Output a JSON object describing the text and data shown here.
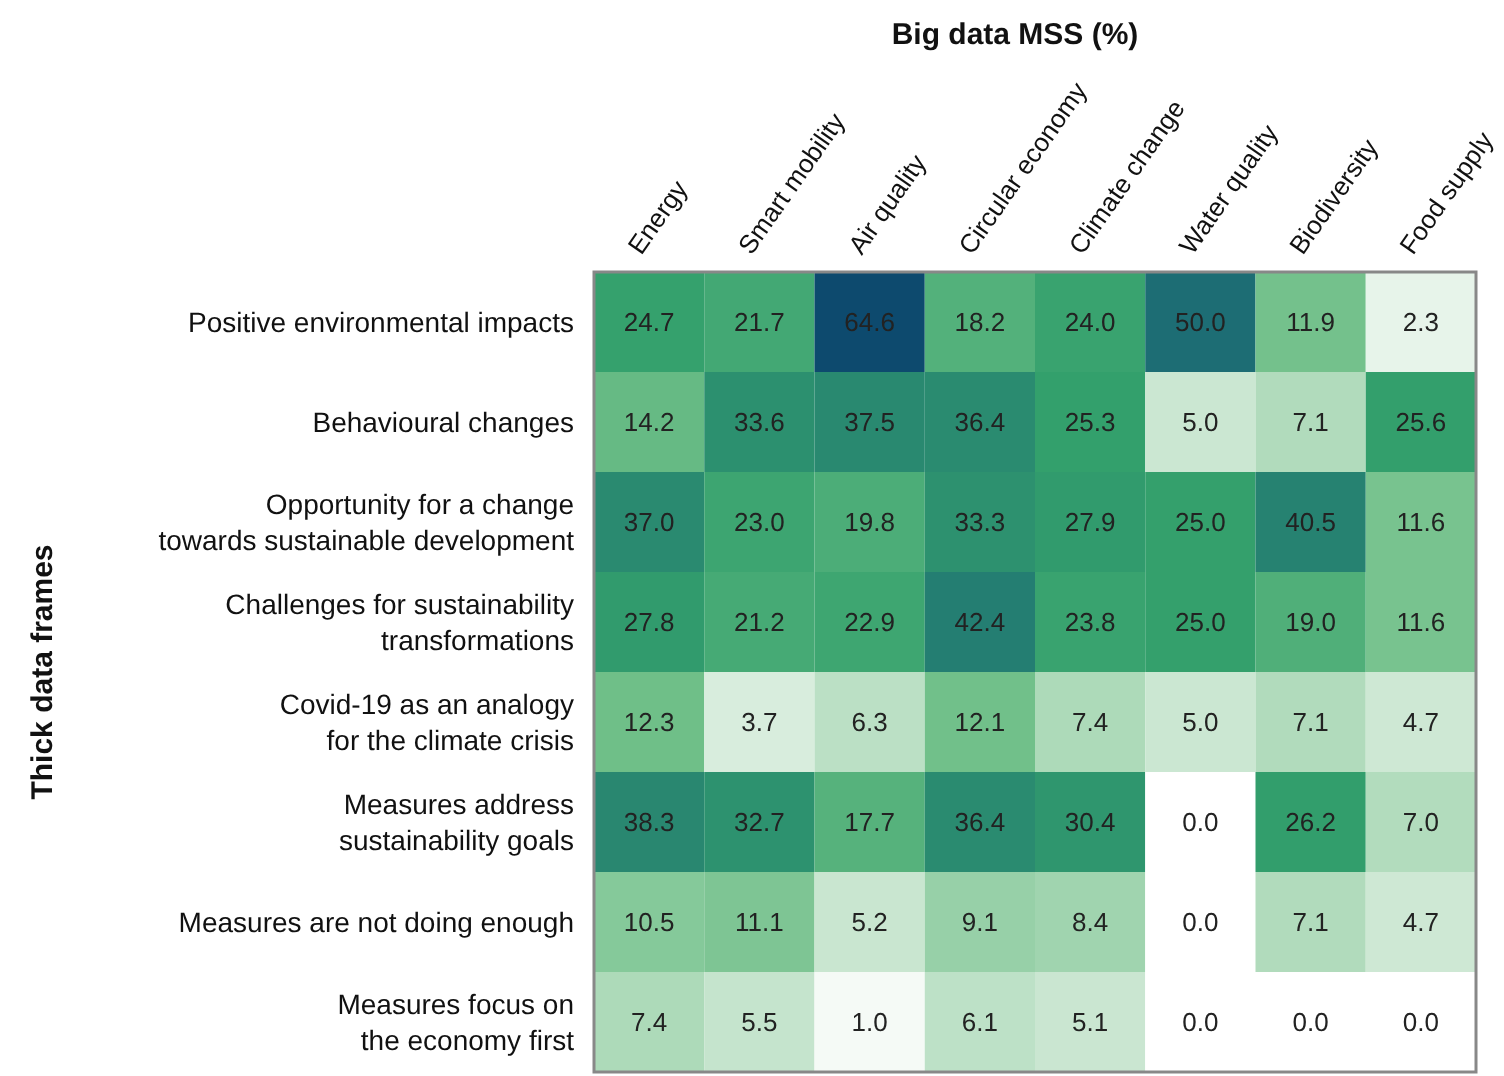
{
  "chart_data": {
    "type": "heatmap",
    "title": "Big data MSS (%)",
    "ylabel": "Thick data frames",
    "categories": [
      "Energy",
      "Smart mobility",
      "Air quality",
      "Circular economy",
      "Climate change",
      "Water quality",
      "Biodiversity",
      "Food supply"
    ],
    "y_categories": [
      "Positive environmental impacts",
      "Behavioural changes",
      "Opportunity for a change towards sustainable development",
      "Challenges for sustainability transformations",
      "Covid-19 as an analogy for the climate crisis",
      "Measures address sustainability goals",
      "Measures are not doing enough",
      "Measures focus on the economy first"
    ],
    "cells": [
      [
        24.7,
        21.7,
        64.6,
        18.2,
        24.0,
        50.0,
        11.9,
        2.3
      ],
      [
        14.2,
        33.6,
        37.5,
        36.4,
        25.3,
        5.0,
        7.1,
        25.6
      ],
      [
        37.0,
        23.0,
        19.8,
        33.3,
        27.9,
        25.0,
        40.5,
        11.6
      ],
      [
        27.8,
        21.2,
        22.9,
        42.4,
        23.8,
        25.0,
        19.0,
        11.6
      ],
      [
        12.3,
        3.7,
        6.3,
        12.1,
        7.4,
        5.0,
        7.1,
        4.7
      ],
      [
        38.3,
        32.7,
        17.7,
        36.4,
        30.4,
        0.0,
        26.2,
        7.0
      ],
      [
        10.5,
        11.1,
        5.2,
        9.1,
        8.4,
        0.0,
        7.1,
        4.7
      ],
      [
        7.4,
        5.5,
        1.0,
        6.1,
        5.1,
        0.0,
        0.0,
        0.0
      ]
    ],
    "cell_labels": [
      [
        "24.7",
        "21.7",
        "64.6",
        "18.2",
        "24.0",
        "50.0",
        "11.9",
        "2.3"
      ],
      [
        "14.2",
        "33.6",
        "37.5",
        "36.4",
        "25.3",
        "5.0",
        "7.1",
        "25.6"
      ],
      [
        "37.0",
        "23.0",
        "19.8",
        "33.3",
        "27.9",
        "25.0",
        "40.5",
        "11.6"
      ],
      [
        "27.8",
        "21.2",
        "22.9",
        "42.4",
        "23.8",
        "25.0",
        "19.0",
        "11.6"
      ],
      [
        "12.3",
        "3.7",
        "6.3",
        "12.1",
        "7.4",
        "5.0",
        "7.1",
        "4.7"
      ],
      [
        "38.3",
        "32.7",
        "17.7",
        "36.4",
        "30.4",
        "0.0",
        "26.2",
        "7.0"
      ],
      [
        "10.5",
        "11.1",
        "5.2",
        "9.1",
        "8.4",
        "0.0",
        "7.1",
        "4.7"
      ],
      [
        "7.4",
        "5.5",
        "1.0",
        "6.1",
        "5.1",
        "0.0",
        "0.0",
        "0.0"
      ]
    ],
    "data_labels": true
  }
}
